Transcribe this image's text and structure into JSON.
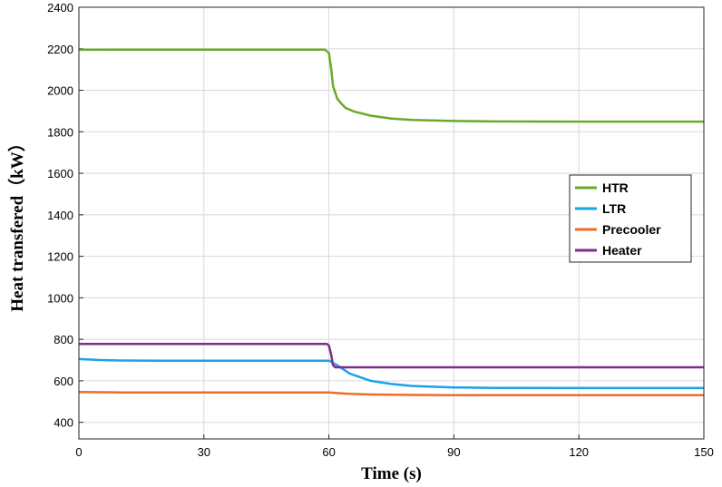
{
  "chart_data": {
    "type": "line",
    "title": "",
    "xlabel": "Time (s)",
    "ylabel": "Heat transfered（kW）",
    "xlim": [
      0,
      150
    ],
    "ylim": [
      320,
      2400
    ],
    "xticks": [
      0,
      30,
      60,
      90,
      120,
      150
    ],
    "yticks": [
      400,
      600,
      800,
      1000,
      1200,
      1400,
      1600,
      1800,
      2000,
      2200,
      2400
    ],
    "grid": true,
    "legend_position": "right",
    "series": [
      {
        "name": "HTR",
        "color": "#6aaa2a",
        "x": [
          0,
          10,
          20,
          30,
          40,
          50,
          59,
          60,
          60.5,
          61,
          62,
          63,
          64,
          66,
          70,
          75,
          80,
          90,
          100,
          120,
          150
        ],
        "y": [
          2195,
          2196,
          2196,
          2196,
          2196,
          2196,
          2196,
          2180,
          2110,
          2020,
          1960,
          1935,
          1915,
          1898,
          1878,
          1864,
          1857,
          1852,
          1850,
          1849,
          1849
        ]
      },
      {
        "name": "LTR",
        "color": "#1aa3e8",
        "x": [
          0,
          5,
          10,
          20,
          30,
          40,
          50,
          60,
          62,
          65,
          70,
          75,
          80,
          90,
          100,
          120,
          150
        ],
        "y": [
          705,
          700,
          698,
          697,
          697,
          697,
          697,
          697,
          675,
          635,
          600,
          585,
          575,
          568,
          566,
          565,
          565
        ]
      },
      {
        "name": "Precooler",
        "color": "#f26b2b",
        "x": [
          0,
          10,
          20,
          30,
          40,
          50,
          60,
          62,
          65,
          70,
          80,
          90,
          120,
          150
        ],
        "y": [
          546,
          544,
          544,
          544,
          544,
          544,
          544,
          541,
          537,
          534,
          532,
          531,
          531,
          531
        ]
      },
      {
        "name": "Heater",
        "color": "#7e2c8e",
        "x": [
          0,
          10,
          20,
          30,
          40,
          50,
          59.5,
          60,
          60.5,
          61,
          61.5,
          62,
          70,
          90,
          120,
          150
        ],
        "y": [
          778,
          778,
          778,
          778,
          778,
          778,
          778,
          770,
          730,
          675,
          665,
          665,
          665,
          665,
          665,
          665
        ]
      }
    ]
  }
}
